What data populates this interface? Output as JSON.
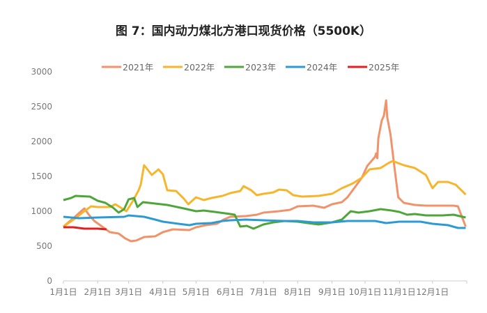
{
  "chart_data": {
    "type": "line",
    "title": "图 7：国内动力煤北方港口现货价格（5500K）",
    "xlabel": "",
    "ylabel": "",
    "ylim": [
      0,
      3000
    ],
    "yticks": [
      "0",
      "500",
      "1000",
      "1500",
      "2000",
      "2500",
      "3000"
    ],
    "xticks": [
      "1月1日",
      "2月1日",
      "3月1日",
      "4月1日",
      "5月1日",
      "6月1日",
      "7月1日",
      "8月1日",
      "9月1日",
      "10月1日",
      "11月1日",
      "12月1日"
    ],
    "grid": false,
    "legend": "top",
    "series": [
      {
        "name": "2021年",
        "color": "#F0936B",
        "points": [
          [
            "01-01",
            780
          ],
          [
            "01-10",
            900
          ],
          [
            "01-17",
            1000
          ],
          [
            "01-20",
            1040
          ],
          [
            "01-24",
            950
          ],
          [
            "01-29",
            860
          ],
          [
            "02-05",
            780
          ],
          [
            "02-12",
            700
          ],
          [
            "02-20",
            680
          ],
          [
            "02-26",
            610
          ],
          [
            "03-03",
            570
          ],
          [
            "03-08",
            580
          ],
          [
            "03-15",
            630
          ],
          [
            "03-25",
            640
          ],
          [
            "04-01",
            700
          ],
          [
            "04-10",
            740
          ],
          [
            "04-25",
            730
          ],
          [
            "05-01",
            770
          ],
          [
            "05-10",
            800
          ],
          [
            "05-20",
            820
          ],
          [
            "05-26",
            880
          ],
          [
            "06-01",
            920
          ],
          [
            "06-15",
            930
          ],
          [
            "06-25",
            950
          ],
          [
            "07-01",
            980
          ],
          [
            "07-15",
            1000
          ],
          [
            "07-25",
            1020
          ],
          [
            "08-01",
            1070
          ],
          [
            "08-15",
            1080
          ],
          [
            "08-25",
            1050
          ],
          [
            "09-01",
            1100
          ],
          [
            "09-10",
            1130
          ],
          [
            "09-15",
            1200
          ],
          [
            "09-22",
            1350
          ],
          [
            "09-28",
            1480
          ],
          [
            "10-03",
            1650
          ],
          [
            "10-10",
            1780
          ],
          [
            "10-11",
            1830
          ],
          [
            "10-12",
            1760
          ],
          [
            "10-13",
            2050
          ],
          [
            "10-16",
            2300
          ],
          [
            "10-18",
            2370
          ],
          [
            "10-20",
            2590
          ],
          [
            "10-21",
            2350
          ],
          [
            "10-24",
            2100
          ],
          [
            "10-27",
            1700
          ],
          [
            "10-31",
            1200
          ],
          [
            "11-05",
            1120
          ],
          [
            "11-15",
            1090
          ],
          [
            "11-25",
            1080
          ],
          [
            "12-20",
            1080
          ],
          [
            "12-24",
            1070
          ],
          [
            "12-31",
            780
          ]
        ]
      },
      {
        "name": "2022年",
        "color": "#F7B52C",
        "points": [
          [
            "01-01",
            780
          ],
          [
            "01-12",
            900
          ],
          [
            "01-20",
            1000
          ],
          [
            "01-26",
            1070
          ],
          [
            "02-01",
            1060
          ],
          [
            "02-12",
            1060
          ],
          [
            "02-17",
            1100
          ],
          [
            "02-22",
            1050
          ],
          [
            "02-27",
            1000
          ],
          [
            "03-05",
            1150
          ],
          [
            "03-10",
            1300
          ],
          [
            "03-12",
            1380
          ],
          [
            "03-15",
            1660
          ],
          [
            "03-18",
            1600
          ],
          [
            "03-22",
            1520
          ],
          [
            "03-28",
            1600
          ],
          [
            "04-01",
            1530
          ],
          [
            "04-05",
            1300
          ],
          [
            "04-13",
            1290
          ],
          [
            "04-20",
            1180
          ],
          [
            "04-24",
            1100
          ],
          [
            "05-01",
            1200
          ],
          [
            "05-08",
            1160
          ],
          [
            "05-15",
            1190
          ],
          [
            "05-25",
            1220
          ],
          [
            "06-01",
            1260
          ],
          [
            "06-10",
            1290
          ],
          [
            "06-13",
            1360
          ],
          [
            "06-20",
            1300
          ],
          [
            "06-25",
            1230
          ],
          [
            "07-01",
            1250
          ],
          [
            "07-10",
            1270
          ],
          [
            "07-15",
            1310
          ],
          [
            "07-22",
            1300
          ],
          [
            "07-28",
            1230
          ],
          [
            "08-05",
            1210
          ],
          [
            "08-20",
            1220
          ],
          [
            "09-01",
            1250
          ],
          [
            "09-10",
            1330
          ],
          [
            "09-20",
            1400
          ],
          [
            "09-28",
            1480
          ],
          [
            "10-05",
            1600
          ],
          [
            "10-15",
            1620
          ],
          [
            "10-22",
            1690
          ],
          [
            "10-26",
            1720
          ],
          [
            "11-05",
            1660
          ],
          [
            "11-15",
            1620
          ],
          [
            "11-25",
            1520
          ],
          [
            "12-01",
            1330
          ],
          [
            "12-06",
            1420
          ],
          [
            "12-15",
            1420
          ],
          [
            "12-22",
            1380
          ],
          [
            "12-31",
            1240
          ]
        ]
      },
      {
        "name": "2023年",
        "color": "#4EA638",
        "points": [
          [
            "01-01",
            1160
          ],
          [
            "01-08",
            1190
          ],
          [
            "01-12",
            1220
          ],
          [
            "01-25",
            1210
          ],
          [
            "02-01",
            1150
          ],
          [
            "02-08",
            1120
          ],
          [
            "02-15",
            1050
          ],
          [
            "02-20",
            980
          ],
          [
            "02-25",
            1030
          ],
          [
            "03-01",
            1170
          ],
          [
            "03-06",
            1190
          ],
          [
            "03-09",
            1060
          ],
          [
            "03-14",
            1130
          ],
          [
            "03-25",
            1110
          ],
          [
            "04-05",
            1090
          ],
          [
            "04-20",
            1040
          ],
          [
            "05-01",
            1000
          ],
          [
            "05-08",
            1010
          ],
          [
            "05-18",
            990
          ],
          [
            "06-01",
            960
          ],
          [
            "06-05",
            950
          ],
          [
            "06-10",
            780
          ],
          [
            "06-16",
            790
          ],
          [
            "06-22",
            750
          ],
          [
            "07-01",
            810
          ],
          [
            "07-10",
            840
          ],
          [
            "07-20",
            860
          ],
          [
            "08-01",
            850
          ],
          [
            "08-10",
            830
          ],
          [
            "08-20",
            810
          ],
          [
            "09-01",
            840
          ],
          [
            "09-10",
            880
          ],
          [
            "09-18",
            1000
          ],
          [
            "09-25",
            980
          ],
          [
            "10-05",
            1000
          ],
          [
            "10-15",
            1030
          ],
          [
            "10-25",
            1010
          ],
          [
            "11-01",
            990
          ],
          [
            "11-08",
            950
          ],
          [
            "11-15",
            960
          ],
          [
            "11-25",
            940
          ],
          [
            "12-10",
            940
          ],
          [
            "12-20",
            950
          ],
          [
            "12-31",
            910
          ]
        ]
      },
      {
        "name": "2024年",
        "color": "#2C9AD3",
        "points": [
          [
            "01-01",
            920
          ],
          [
            "01-15",
            900
          ],
          [
            "02-01",
            910
          ],
          [
            "02-25",
            920
          ],
          [
            "03-01",
            940
          ],
          [
            "03-15",
            920
          ],
          [
            "03-25",
            880
          ],
          [
            "04-01",
            850
          ],
          [
            "04-15",
            820
          ],
          [
            "04-25",
            800
          ],
          [
            "05-01",
            820
          ],
          [
            "05-15",
            830
          ],
          [
            "05-25",
            860
          ],
          [
            "06-01",
            870
          ],
          [
            "06-15",
            880
          ],
          [
            "07-01",
            870
          ],
          [
            "07-20",
            860
          ],
          [
            "08-01",
            860
          ],
          [
            "08-15",
            840
          ],
          [
            "09-01",
            840
          ],
          [
            "09-15",
            860
          ],
          [
            "10-01",
            860
          ],
          [
            "10-10",
            860
          ],
          [
            "10-20",
            830
          ],
          [
            "11-01",
            850
          ],
          [
            "11-20",
            850
          ],
          [
            "12-01",
            820
          ],
          [
            "12-15",
            800
          ],
          [
            "12-24",
            760
          ],
          [
            "12-31",
            760
          ]
        ]
      },
      {
        "name": "2025年",
        "color": "#E02020",
        "points": [
          [
            "01-01",
            770
          ],
          [
            "01-10",
            770
          ],
          [
            "01-20",
            750
          ],
          [
            "02-01",
            750
          ],
          [
            "02-09",
            740
          ]
        ]
      }
    ]
  }
}
